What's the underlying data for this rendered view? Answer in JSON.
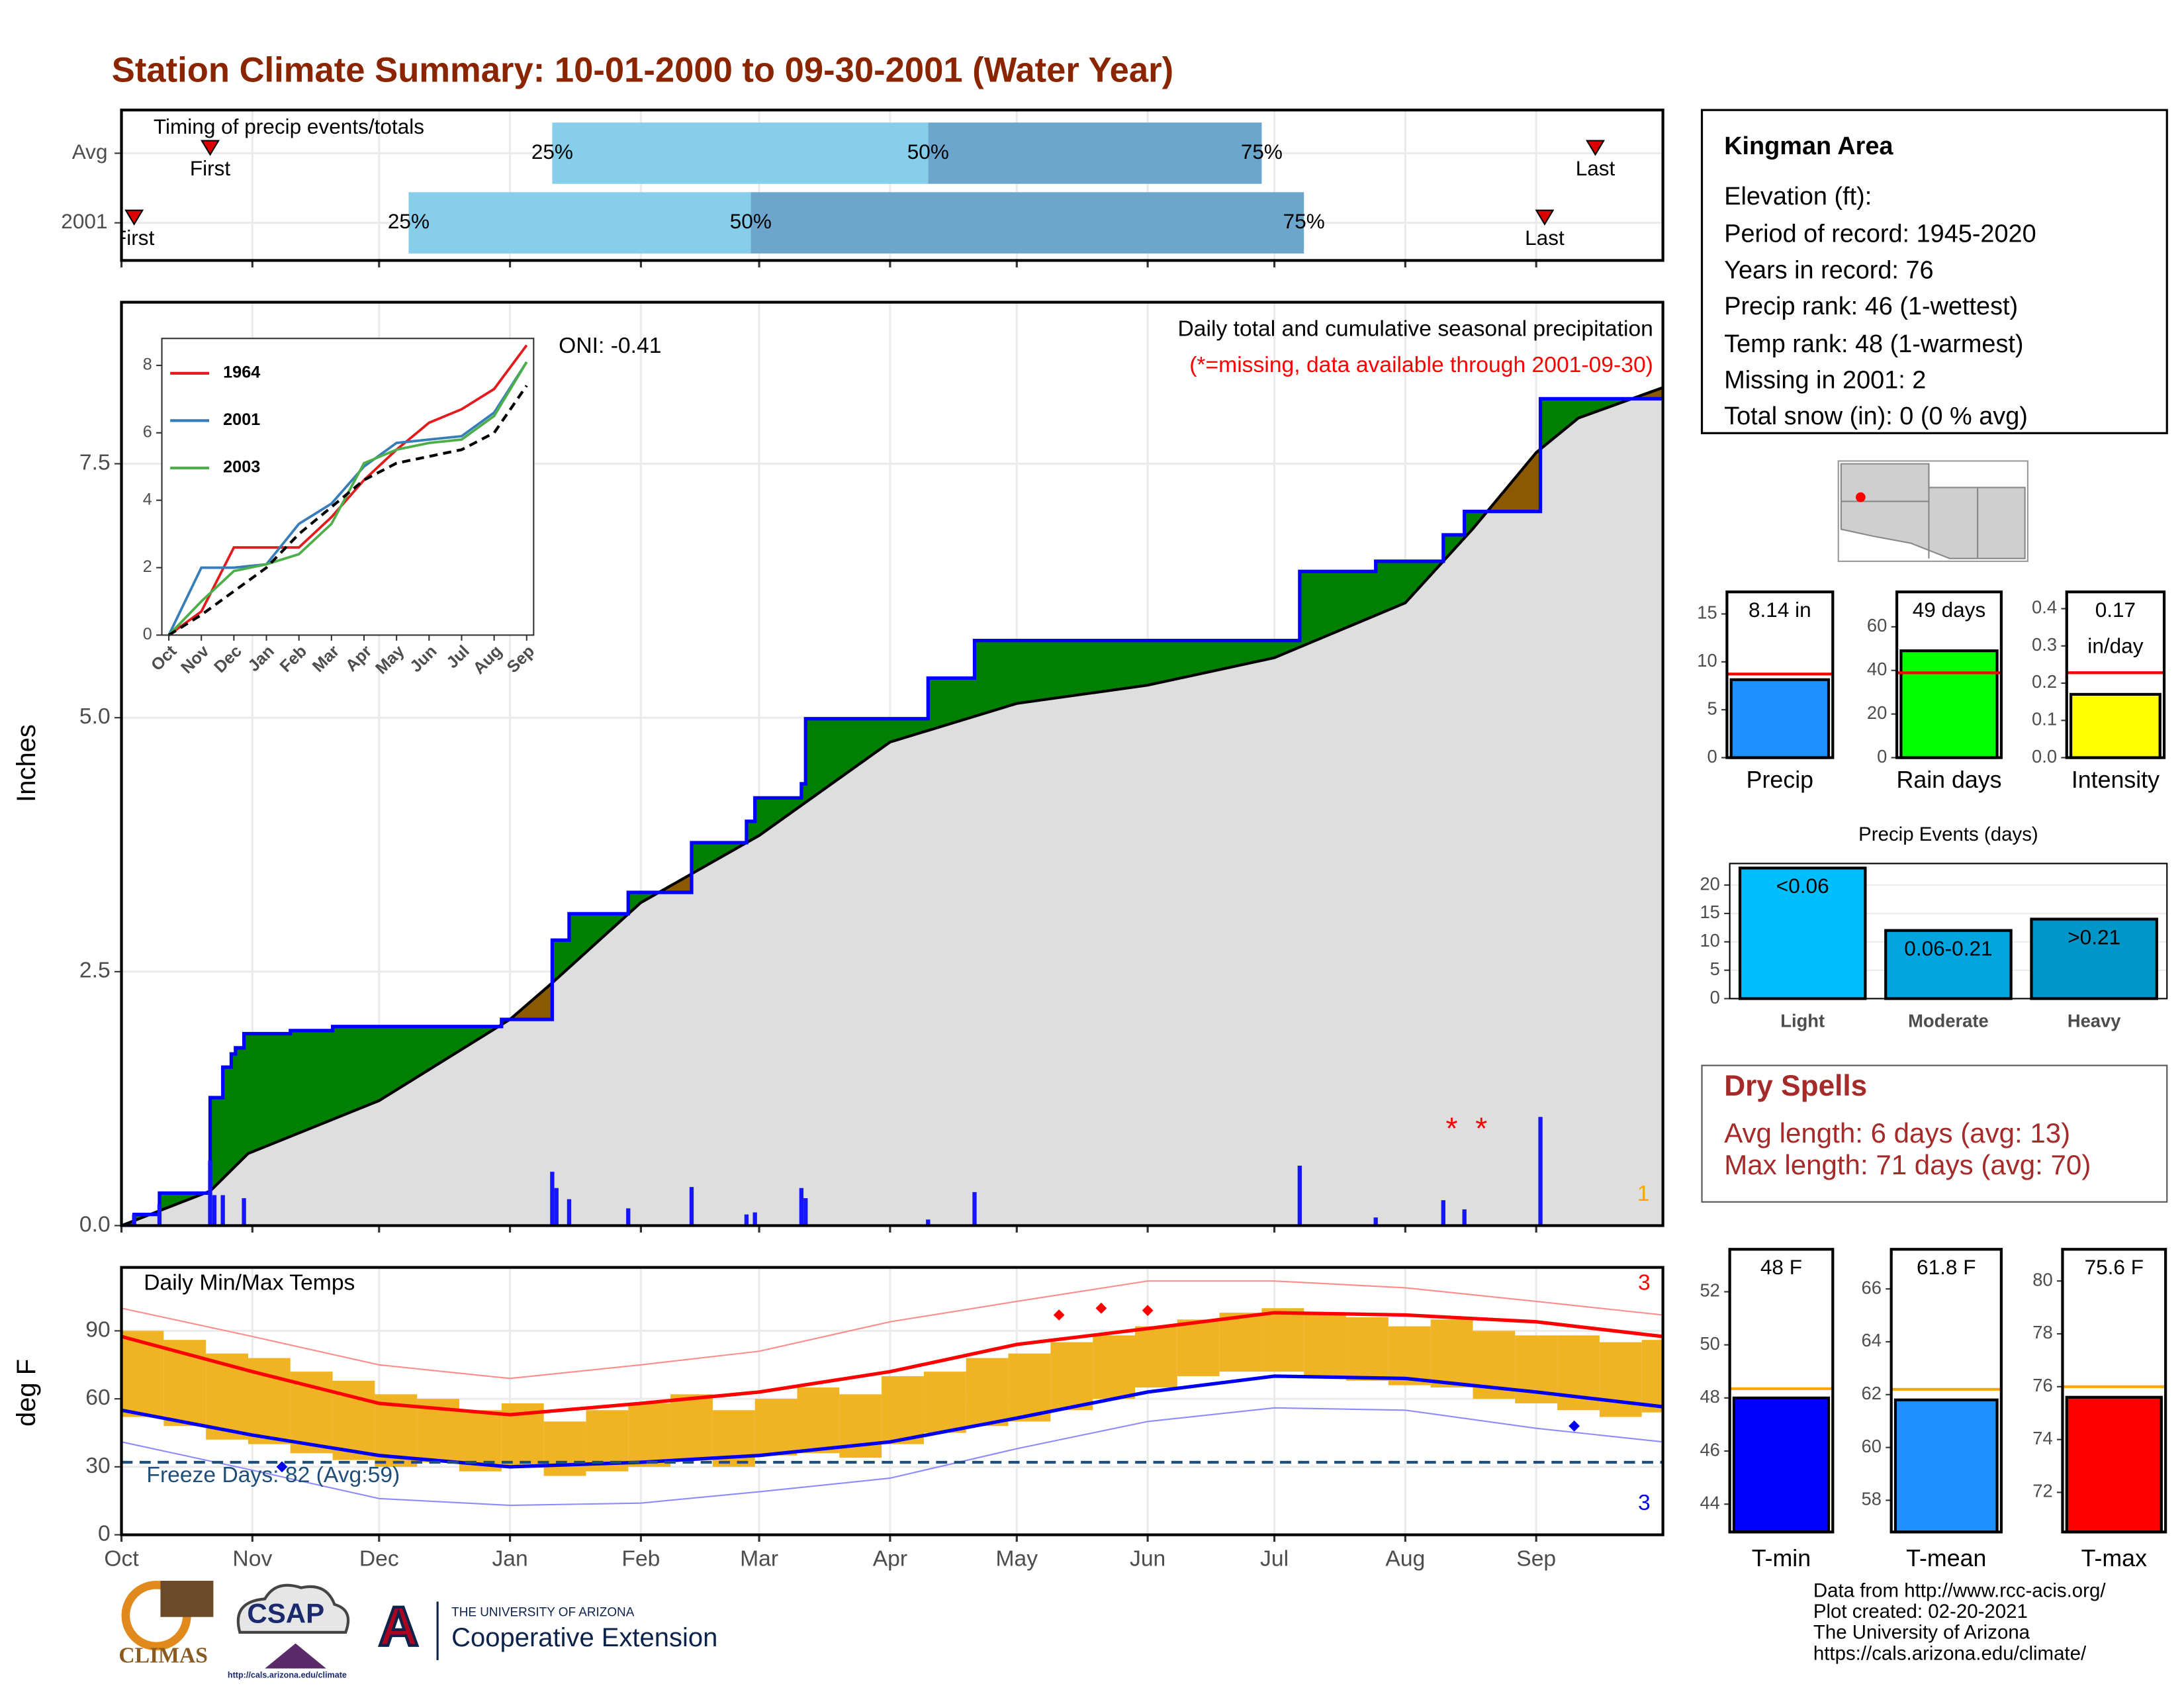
{
  "title": "Station Climate Summary: 10-01-2000 to 09-30-2001 (Water Year)",
  "info": {
    "name": "Kingman Area",
    "lines": [
      "Elevation (ft):",
      "Period of record: 1945-2020",
      "Years in record: 76",
      "Precip rank: 46 (1-wettest)",
      "Temp rank: 48 (1-warmest)",
      "Missing in 2001: 2",
      "Total snow (in): 0 (0 % avg)"
    ]
  },
  "dry_spells": {
    "title": "Dry Spells",
    "lines": [
      "Avg length: 6 days (avg: 13)",
      "Max length: 71 days (avg: 70)"
    ]
  },
  "footer": [
    "Data from http://www.rcc-acis.org/",
    "Plot created: 02-20-2021",
    "The University of Arizona",
    "https://cals.arizona.edu/climate/"
  ],
  "logos": {
    "climas": "CLIMAS",
    "csap": "CSAP",
    "csap_url": "http://cals.arizona.edu/climate",
    "ua": "A",
    "ua_name": "THE UNIVERSITY OF ARIZONA",
    "extension": "Cooperative Extension"
  },
  "chart_data": [
    {
      "type": "timing",
      "title": "Timing of precip events/totals",
      "xlim": [
        0,
        365
      ],
      "xticks": [
        0,
        31,
        61,
        92,
        123,
        151,
        182,
        212,
        243,
        273,
        304,
        335
      ],
      "labels": {
        "first": "First",
        "last": "Last",
        "q25": "25%",
        "q50": "50%",
        "q75": "75%"
      },
      "colors": [
        "#87ceeb",
        "#6ca6cd"
      ],
      "marker_color": "#dd0000",
      "series": [
        {
          "name": "Avg",
          "first": 21,
          "q25": 102,
          "q50": 191,
          "q75": 270,
          "last": 349
        },
        {
          "name": "2001",
          "first": 3,
          "q25": 68,
          "q50": 149,
          "q75": 280,
          "last": 337
        }
      ]
    },
    {
      "type": "area",
      "title": "Daily total and cumulative seasonal precipitation",
      "subtitle": "(*=missing, data available through 2001-09-30)",
      "annotation": "ONI: -0.41",
      "corner_label": "1",
      "ylabel": "Inches",
      "xlim": [
        0,
        365
      ],
      "xticks": [
        0,
        31,
        61,
        92,
        123,
        151,
        182,
        212,
        243,
        273,
        304,
        335
      ],
      "ylim": [
        0,
        9.09
      ],
      "yticks": [
        {
          "value": 0,
          "label": "0.0"
        },
        2.5,
        {
          "value": 5,
          "label": "5.0"
        },
        7.5
      ],
      "grid": true,
      "above_color": "#008000",
      "below_color": "#8b5a00",
      "fill_color": "#dedede",
      "cumulative": {
        "color": "#0000ff",
        "x": [
          0,
          3,
          9,
          21,
          24,
          26,
          27,
          29,
          40,
          50,
          90,
          102,
          106,
          120,
          135,
          148,
          150,
          161,
          162,
          191,
          202,
          279,
          297,
          313,
          318,
          336
        ],
        "values": [
          0,
          0.11,
          0.32,
          1.26,
          1.56,
          1.69,
          1.75,
          1.89,
          1.92,
          1.96,
          2.03,
          2.81,
          3.07,
          3.28,
          3.77,
          3.98,
          4.21,
          4.35,
          4.99,
          5.39,
          5.76,
          6.44,
          6.54,
          6.8,
          7.03,
          8.14
        ]
      },
      "average": {
        "color": "#000000",
        "x": [
          0,
          21,
          30,
          61,
          92,
          102,
          123,
          151,
          182,
          212,
          243,
          273,
          304,
          320,
          335,
          345,
          365
        ],
        "values": [
          0,
          0.34,
          0.71,
          1.23,
          2.03,
          2.39,
          3.18,
          3.84,
          4.76,
          5.14,
          5.32,
          5.59,
          6.13,
          6.86,
          7.61,
          7.95,
          8.25
        ]
      },
      "daily": {
        "color": "#1515ff",
        "x": [
          3,
          9,
          21,
          22,
          24,
          29,
          102,
          103,
          106,
          120,
          135,
          148,
          150,
          161,
          162,
          191,
          202,
          279,
          297,
          313,
          318,
          336
        ],
        "values": [
          0.11,
          0.21,
          0.64,
          0.3,
          0.3,
          0.27,
          0.53,
          0.37,
          0.26,
          0.17,
          0.38,
          0.11,
          0.13,
          0.37,
          0.27,
          0.06,
          0.33,
          0.59,
          0.08,
          0.25,
          0.16,
          1.07
        ]
      },
      "missing": {
        "symbol": "*",
        "color": "#ff0000",
        "x": [
          315,
          322
        ]
      }
    },
    {
      "type": "line",
      "categories": [
        "Oct",
        "Nov",
        "Dec",
        "Jan",
        "Feb",
        "Mar",
        "Apr",
        "May",
        "Jun",
        "Jul",
        "Aug",
        "Sep"
      ],
      "ylim": [
        0,
        8.8
      ],
      "yticks": [
        0,
        2,
        4,
        6,
        8
      ],
      "series": [
        {
          "name": "1964",
          "color": "#e41a1c",
          "values": [
            0,
            0.7,
            2.6,
            2.6,
            2.6,
            3.5,
            4.6,
            5.5,
            6.3,
            6.7,
            7.3,
            8.6
          ]
        },
        {
          "name": "2001",
          "color": "#377eb8",
          "values": [
            0,
            2.0,
            2.0,
            2.1,
            3.3,
            3.9,
            5.0,
            5.7,
            5.8,
            5.9,
            6.6,
            8.1
          ]
        },
        {
          "name": "2003",
          "color": "#4daf4a",
          "values": [
            0,
            1.0,
            1.9,
            2.1,
            2.4,
            3.3,
            5.1,
            5.5,
            5.7,
            5.8,
            6.5,
            8.1
          ]
        },
        {
          "color": "#000000",
          "dash": true,
          "values": [
            0,
            0.6,
            1.3,
            2.0,
            3.0,
            3.8,
            4.6,
            5.1,
            5.3,
            5.5,
            6.0,
            7.4
          ]
        }
      ]
    },
    {
      "type": "temperature",
      "title": "Daily Min/Max Temps",
      "ylabel": "deg F",
      "freeze_label": "Freeze Days: 82 (Avg:59)",
      "high_count": "3",
      "low_count": "3",
      "xlim": [
        0,
        365
      ],
      "xticks": [
        {
          "value": 0,
          "label": "Oct"
        },
        {
          "value": 31,
          "label": "Nov"
        },
        {
          "value": 61,
          "label": "Dec"
        },
        {
          "value": 92,
          "label": "Jan"
        },
        {
          "value": 123,
          "label": "Feb"
        },
        {
          "value": 151,
          "label": "Mar"
        },
        {
          "value": 182,
          "label": "Apr"
        },
        {
          "value": 212,
          "label": "May"
        },
        {
          "value": 243,
          "label": "Jun"
        },
        {
          "value": 273,
          "label": "Jul"
        },
        {
          "value": 304,
          "label": "Aug"
        },
        {
          "value": 335,
          "label": "Sep"
        }
      ],
      "ylim": [
        0,
        118
      ],
      "yticks": [
        0,
        30,
        60,
        90
      ],
      "grid": true,
      "freeze_line": {
        "value": 32,
        "color": "#1f4e79"
      },
      "daily": {
        "color": "#efb324",
        "x": [
          0,
          10,
          20,
          30,
          40,
          50,
          60,
          70,
          80,
          90,
          100,
          110,
          120,
          130,
          140,
          150,
          160,
          170,
          180,
          190,
          200,
          210,
          220,
          230,
          240,
          250,
          260,
          270,
          280,
          290,
          300,
          310,
          320,
          330,
          340,
          350,
          360
        ],
        "max": [
          90,
          86,
          80,
          78,
          72,
          68,
          62,
          60,
          55,
          58,
          50,
          55,
          58,
          62,
          55,
          60,
          65,
          62,
          70,
          72,
          78,
          80,
          85,
          88,
          92,
          95,
          98,
          100,
          98,
          96,
          92,
          95,
          90,
          88,
          88,
          85,
          86
        ],
        "min": [
          52,
          48,
          42,
          40,
          36,
          33,
          30,
          32,
          28,
          30,
          26,
          28,
          30,
          33,
          30,
          35,
          36,
          34,
          40,
          45,
          48,
          50,
          55,
          60,
          65,
          70,
          72,
          72,
          70,
          68,
          66,
          65,
          60,
          58,
          55,
          52,
          54
        ]
      },
      "month_x": [
        0,
        31,
        61,
        92,
        123,
        151,
        182,
        212,
        243,
        273,
        304,
        335,
        365
      ],
      "avg_max": {
        "color": "#ff0000",
        "values": [
          87.5,
          72,
          58,
          53,
          58,
          63,
          72,
          84,
          91,
          98,
          97,
          94,
          87.5
        ]
      },
      "avg_min": {
        "color": "#0000ee",
        "values": [
          55,
          44,
          35,
          30,
          32,
          35,
          41,
          51.5,
          63,
          70,
          69,
          63,
          56.5
        ]
      },
      "record_max": {
        "color": "#ff8c8c",
        "values": [
          100,
          87.5,
          75,
          69,
          75,
          81,
          94,
          103,
          112,
          112,
          109,
          103,
          97
        ]
      },
      "record_min": {
        "color": "#8c8cff",
        "values": [
          41,
          28.5,
          16,
          13,
          14,
          19,
          25,
          38,
          50,
          56,
          55,
          47,
          41
        ]
      },
      "record_highs": {
        "color": "#ff0000",
        "x": [
          222,
          232,
          243
        ],
        "values": [
          97,
          100,
          99
        ]
      },
      "record_lows": {
        "color": "#0000ee",
        "x": [
          38,
          344
        ],
        "values": [
          30,
          48
        ]
      }
    },
    {
      "type": "bar",
      "categories": [
        "Precip"
      ],
      "values": [
        8.14
      ],
      "value_labels": [
        "8.14 in"
      ],
      "avg": 8.73,
      "avg_color": "#ff0000",
      "color": "#1e90ff",
      "ylim": [
        0,
        17.3
      ],
      "yticks": [
        0,
        5,
        10,
        15
      ]
    },
    {
      "type": "bar",
      "categories": [
        "Rain days"
      ],
      "values": [
        49
      ],
      "value_labels": [
        "49 days"
      ],
      "avg": 38.9,
      "avg_color": "#ff0000",
      "color": "#00ff00",
      "ylim": [
        0,
        76
      ],
      "yticks": [
        0,
        20,
        40,
        60
      ]
    },
    {
      "type": "bar",
      "categories": [
        "Intensity"
      ],
      "values": [
        0.17
      ],
      "value_labels": [
        "0.17"
      ],
      "unit": "in/day",
      "avg": 0.228,
      "avg_color": "#ff0000",
      "color": "#ffff00",
      "ylim": [
        0,
        0.445
      ],
      "yticks": [
        {
          "value": 0,
          "label": "0.0"
        },
        0.1,
        0.2,
        0.3,
        0.4
      ]
    },
    {
      "type": "bar",
      "title": "Precip Events (days)",
      "categories": [
        "Light",
        "Moderate",
        "Heavy"
      ],
      "values": [
        23,
        12,
        14
      ],
      "bar_labels": [
        "<0.06",
        "0.06-0.21",
        ">0.21"
      ],
      "colors": [
        "#00bfff",
        "#00a5e0",
        "#0096c8"
      ],
      "ylim": [
        0,
        23.8
      ],
      "yticks": [
        0,
        5,
        10,
        15,
        20
      ]
    },
    {
      "type": "bar",
      "categories": [
        "T-min"
      ],
      "values": [
        48
      ],
      "value_labels": [
        "48 F"
      ],
      "avg": 48.35,
      "avg_color": "#ffa500",
      "color": "#0000ff",
      "ylim": [
        42.95,
        53.6
      ],
      "yticks": [
        44,
        46,
        48,
        50,
        52
      ]
    },
    {
      "type": "bar",
      "categories": [
        "T-mean"
      ],
      "values": [
        61.8
      ],
      "value_labels": [
        "61.8 F"
      ],
      "avg": 62.2,
      "avg_color": "#ffa500",
      "color": "#1e90ff",
      "ylim": [
        56.8,
        67.5
      ],
      "yticks": [
        58,
        60,
        62,
        64,
        66
      ]
    },
    {
      "type": "bar",
      "categories": [
        "T-max"
      ],
      "values": [
        75.6
      ],
      "value_labels": [
        "75.6 F"
      ],
      "avg": 76.0,
      "avg_color": "#ffa500",
      "color": "#ff0000",
      "ylim": [
        70.5,
        81.2
      ],
      "yticks": [
        72,
        74,
        76,
        78,
        80
      ]
    }
  ]
}
